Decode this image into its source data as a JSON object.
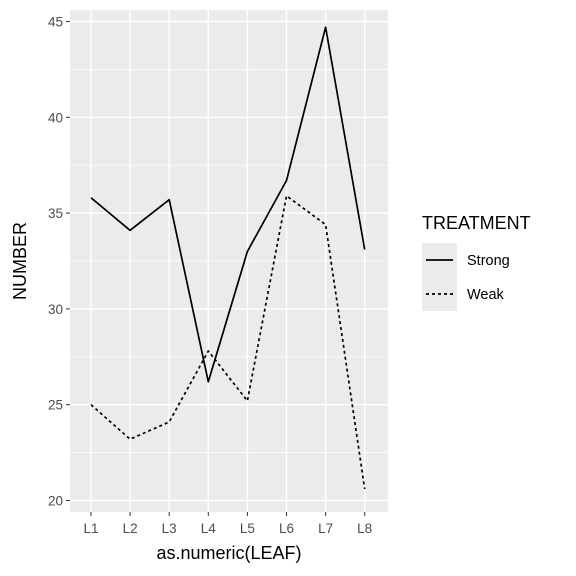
{
  "chart_data": {
    "type": "line",
    "x_ticks": [
      "L1",
      "L2",
      "L3",
      "L4",
      "L5",
      "L6",
      "L7",
      "L8"
    ],
    "xlabel": "as.numeric(LEAF)",
    "ylabel": "NUMBER",
    "ylim": [
      19.4,
      45.6
    ],
    "y_ticks": [
      20,
      25,
      30,
      35,
      40,
      45
    ],
    "grid": true,
    "legend": {
      "title": "TREATMENT",
      "position": "right"
    },
    "series": [
      {
        "name": "Strong",
        "line_style": "solid",
        "color": "#000000",
        "values": [
          35.8,
          34.1,
          35.7,
          26.2,
          33.0,
          36.7,
          44.7,
          33.1
        ]
      },
      {
        "name": "Weak",
        "line_style": "dashed",
        "color": "#000000",
        "values": [
          25.0,
          23.2,
          24.1,
          27.8,
          25.2,
          35.9,
          34.4,
          20.6
        ]
      }
    ],
    "colors": {
      "panel_background": "#ebebeb",
      "grid_major": "#ffffff",
      "tick_text": "#4d4d4d"
    }
  }
}
